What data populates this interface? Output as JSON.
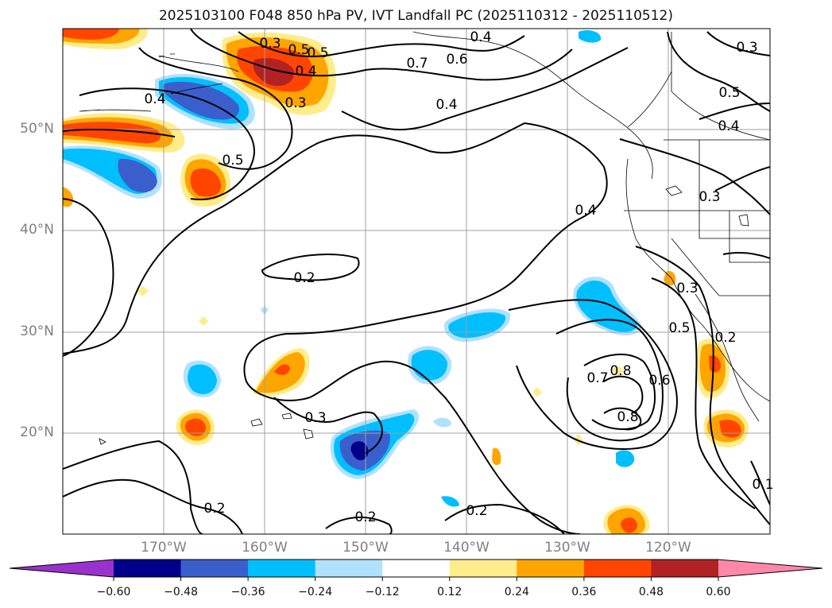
{
  "title": "2025103100 F048 850 hPa PV, IVT Landfall PC (2025110312 - 2025110512)",
  "map": {
    "lon_range": [
      -180,
      -110
    ],
    "lat_range": [
      10,
      60
    ],
    "lon_labels": [
      "170°W",
      "160°W",
      "150°W",
      "140°W",
      "130°W",
      "120°W"
    ],
    "lat_labels": [
      "50°N",
      "40°N",
      "30°N",
      "20°N"
    ],
    "contour_labels": [
      "0.7",
      "0.6",
      "0.4",
      "0.5",
      "0.4",
      "0.3",
      "0.5",
      "0.4",
      "0.3",
      "0.4",
      "0.2",
      "0.3",
      "0.2",
      "0.2",
      "0.2",
      "0.3",
      "0.5",
      "0.6",
      "0.7",
      "0.8",
      "0.8",
      "0.2",
      "0.3",
      "0.4",
      "0.5",
      "0.1",
      "0.5",
      "0.4",
      "0.3"
    ]
  },
  "colorbar": {
    "ticks": [
      "−0.60",
      "−0.48",
      "−0.36",
      "−0.24",
      "−0.12",
      "0.12",
      "0.24",
      "0.36",
      "0.48",
      "0.60"
    ],
    "colors": [
      "#9932cc",
      "#00008b",
      "#3a5fcd",
      "#00bfff",
      "#b0e2ff",
      "#ffffff",
      "#ffec8b",
      "#ffa500",
      "#ff4500",
      "#b22222",
      "#ff88aa"
    ]
  }
}
